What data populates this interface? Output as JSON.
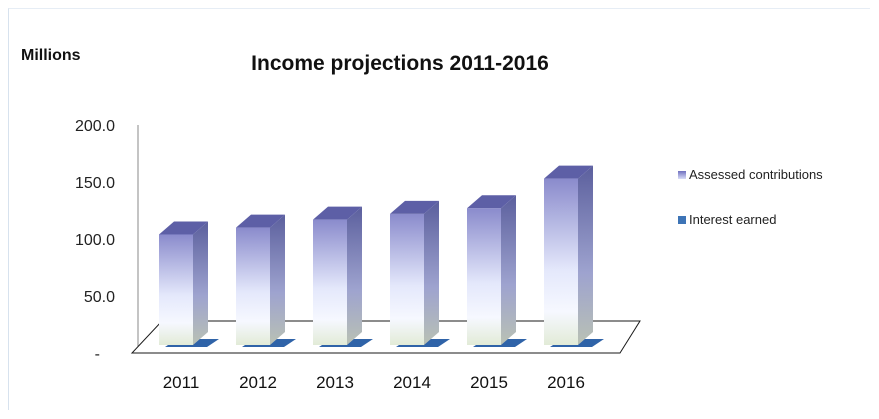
{
  "chart_data": {
    "type": "bar",
    "title": "Income projections 2011-2016",
    "unit_label": "Millions",
    "categories": [
      "2011",
      "2012",
      "2013",
      "2014",
      "2015",
      "2016"
    ],
    "series": [
      {
        "name": "Assessed contributions",
        "values": [
          104,
          110,
          117,
          122,
          127,
          153
        ],
        "color": "#8c8fcf"
      },
      {
        "name": "Interest earned",
        "values": [
          0.5,
          0.5,
          0.5,
          0.5,
          0.5,
          0.5
        ],
        "color": "#3d74b6"
      }
    ],
    "ylim": [
      0,
      200
    ],
    "yticks": [
      "-",
      "50.0",
      "100.0",
      "150.0",
      "200.0"
    ],
    "grid": false,
    "legend": "right",
    "style": "3d-column"
  }
}
